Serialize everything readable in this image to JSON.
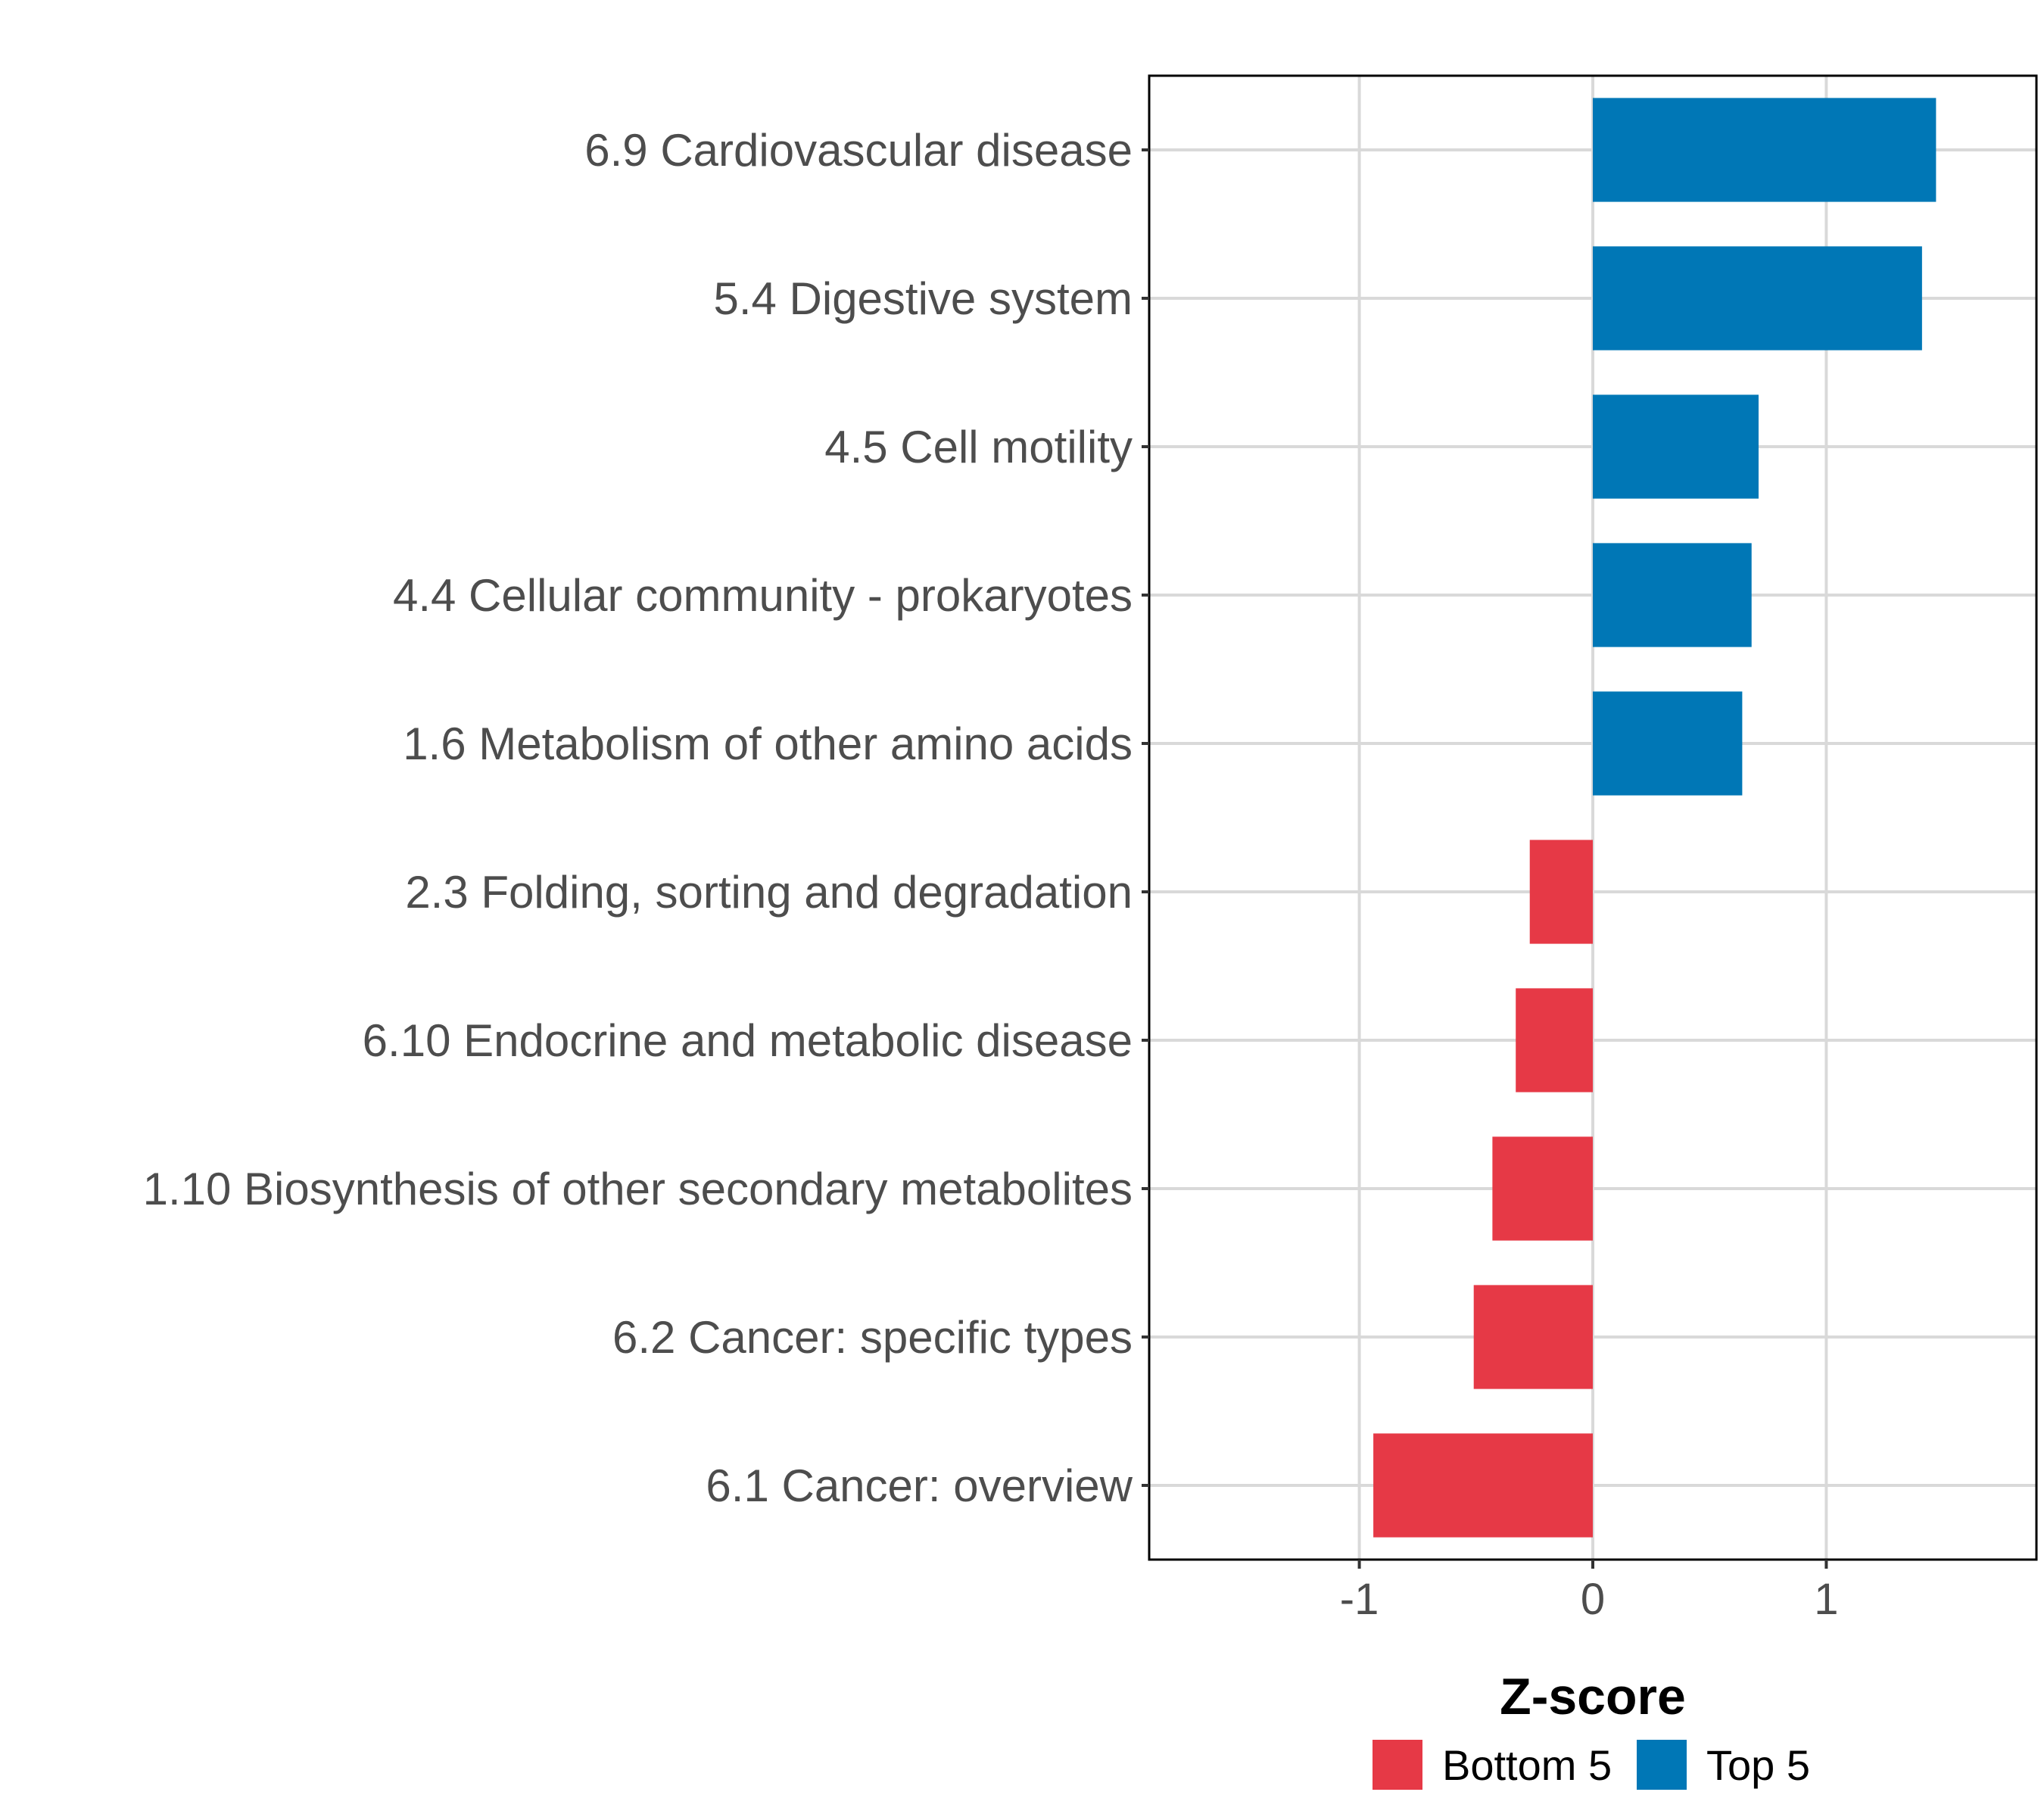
{
  "chart_data": {
    "type": "bar",
    "orientation": "horizontal",
    "title": "",
    "xlabel": "Z-score",
    "ylabel": "",
    "xlim": [
      -1.9,
      1.9
    ],
    "xticks": [
      -1,
      0,
      1
    ],
    "xtick_labels": [
      "-1",
      "0",
      "1"
    ],
    "grid": true,
    "legend_position": "bottom",
    "categories": [
      "6.9 Cardiovascular disease",
      "5.4 Digestive system",
      "4.5 Cell motility",
      "4.4 Cellular community - prokaryotes",
      "1.6 Metabolism of other amino acids",
      "2.3 Folding, sorting and degradation",
      "6.10 Endocrine and metabolic disease",
      "1.10 Biosynthesis of other secondary metabolites",
      "6.2 Cancer: specific types",
      "6.1 Cancer: overview"
    ],
    "values": [
      1.47,
      1.41,
      0.71,
      0.68,
      0.64,
      -0.27,
      -0.33,
      -0.43,
      -0.51,
      -0.94
    ],
    "groups": [
      "Top 5",
      "Top 5",
      "Top 5",
      "Top 5",
      "Top 5",
      "Bottom 5",
      "Bottom 5",
      "Bottom 5",
      "Bottom 5",
      "Bottom 5"
    ],
    "legend": [
      {
        "name": "Bottom 5",
        "color": "#E63946"
      },
      {
        "name": "Top 5",
        "color": "#0077B6"
      }
    ]
  }
}
